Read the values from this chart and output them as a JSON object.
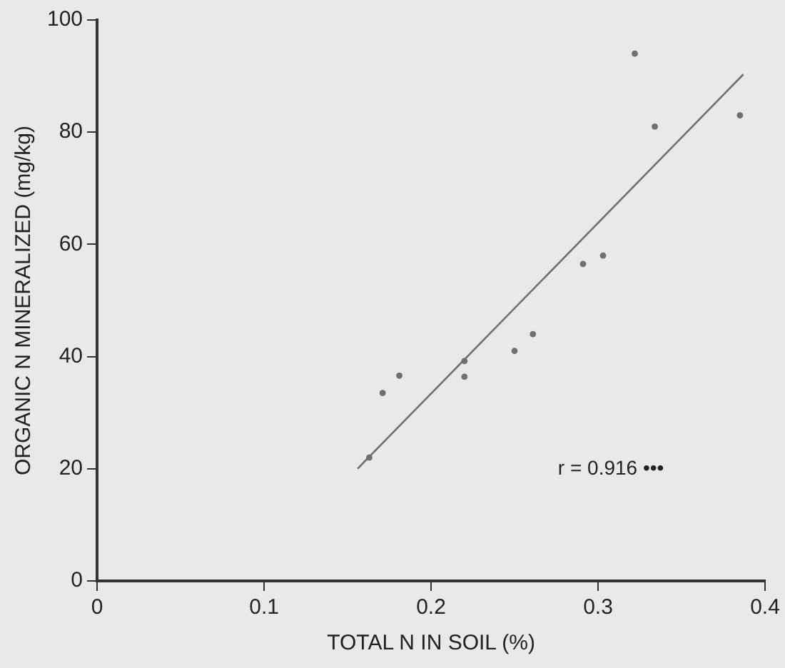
{
  "chart_data": {
    "type": "scatter",
    "xlabel": "TOTAL N IN SOIL (%)",
    "ylabel": "ORGANIC N MINERALIZED (mg/kg)",
    "xlim": [
      0,
      0.4
    ],
    "xticks": [
      0,
      0.1,
      0.2,
      0.3,
      0.4
    ],
    "ylim": [
      0,
      100
    ],
    "yticks": [
      0,
      20,
      40,
      60,
      80,
      100
    ],
    "grid": false,
    "legend": false,
    "marker": "circle",
    "series": [
      {
        "color": "#707070",
        "x": [
          0.163,
          0.171,
          0.181,
          0.22,
          0.22,
          0.25,
          0.261,
          0.291,
          0.303,
          0.322,
          0.334,
          0.385
        ],
        "values": [
          22,
          33.5,
          36.6,
          36.4,
          39.2,
          41,
          44,
          56.5,
          58,
          94,
          81,
          83
        ]
      },
      {
        "type": "line",
        "color": "#707070",
        "marker": "none",
        "x": [
          0.156,
          0.387
        ],
        "values": [
          20,
          90.3
        ]
      }
    ],
    "annotations": [
      "r = 0.916 •••"
    ]
  }
}
